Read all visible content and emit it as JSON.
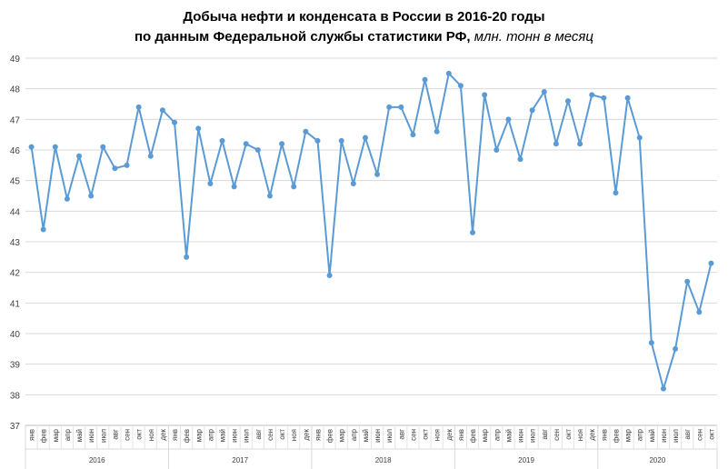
{
  "chart_data": {
    "type": "line",
    "title_line1": "Добыча  нефти  и  конденсата  в  России  в  2016-20 годы",
    "title_line2": "по  данным  Федеральной  службы  статистики  РФ,",
    "title_unit": "млн. тонн в месяц",
    "xlabel": "",
    "ylabel": "",
    "ylim": [
      37,
      49
    ],
    "yticks": [
      37,
      38,
      39,
      40,
      41,
      42,
      43,
      44,
      45,
      46,
      47,
      48,
      49
    ],
    "grid": true,
    "line_color": "#5b9bd5",
    "months": [
      "янв",
      "фев",
      "мар",
      "апр",
      "май",
      "июн",
      "июл",
      "авг",
      "сен",
      "окт",
      "ноя",
      "дек"
    ],
    "years": [
      {
        "label": "2016",
        "months": 12
      },
      {
        "label": "2017",
        "months": 12
      },
      {
        "label": "2018",
        "months": 12
      },
      {
        "label": "2019",
        "months": 12
      },
      {
        "label": "2020",
        "months": 10
      }
    ],
    "values": [
      46.1,
      43.4,
      46.1,
      44.4,
      45.8,
      44.5,
      46.1,
      45.4,
      45.5,
      47.4,
      45.8,
      47.3,
      46.9,
      42.5,
      46.7,
      44.9,
      46.3,
      44.8,
      46.2,
      46.0,
      44.5,
      46.2,
      44.8,
      46.6,
      46.3,
      41.9,
      46.3,
      44.9,
      46.4,
      45.2,
      47.4,
      47.4,
      46.5,
      48.3,
      46.6,
      48.5,
      48.1,
      43.3,
      47.8,
      46.0,
      47.0,
      45.7,
      47.3,
      47.9,
      46.2,
      47.6,
      46.2,
      47.8,
      47.7,
      44.6,
      47.7,
      46.4,
      39.7,
      38.2,
      39.5,
      41.7,
      40.7,
      42.3
    ]
  }
}
